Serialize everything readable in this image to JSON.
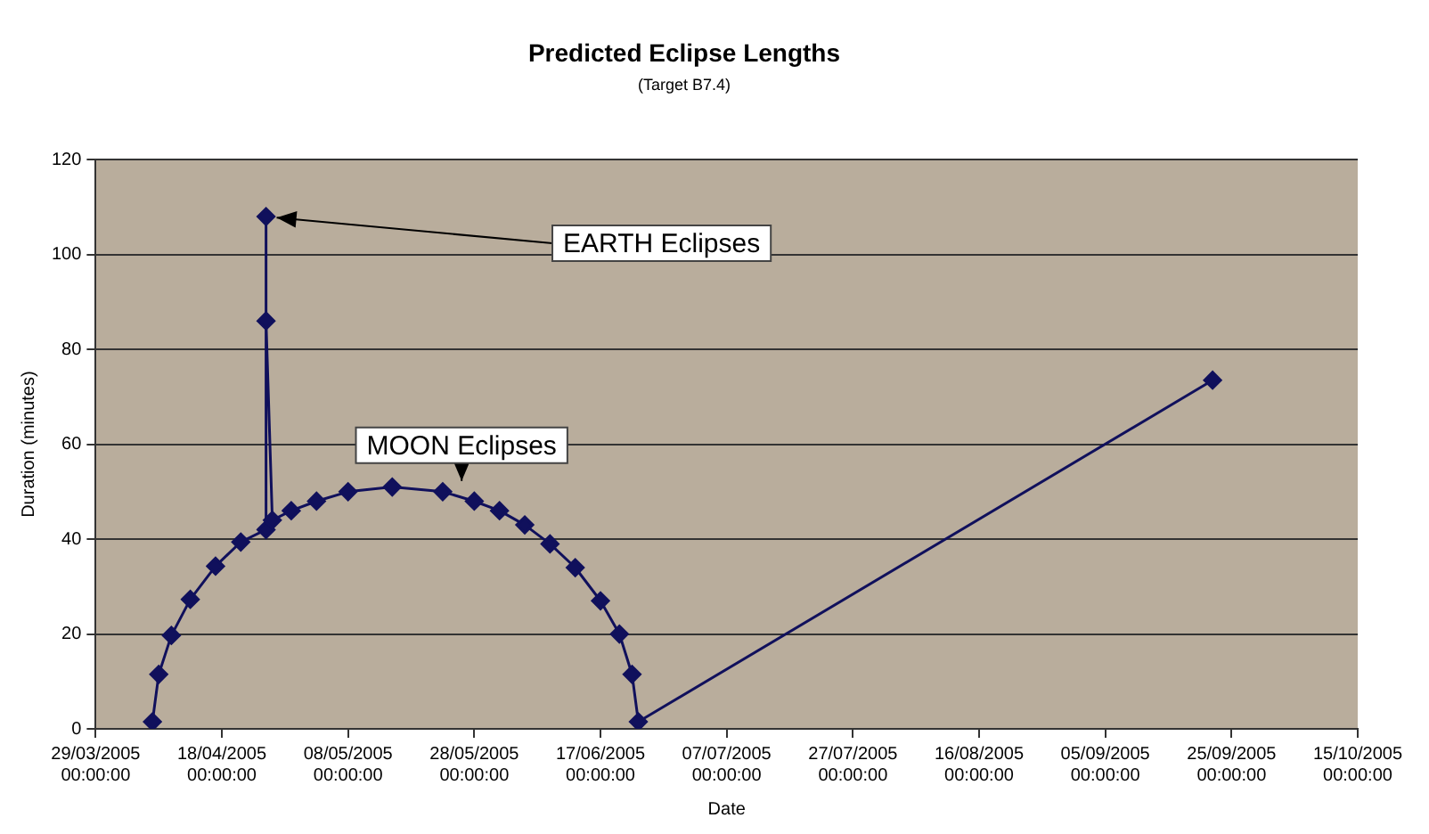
{
  "chart_data": {
    "type": "line",
    "title": "Predicted Eclipse Lengths",
    "subtitle": "(Target B7.4)",
    "xlabel": "Date",
    "ylabel": "Duration (minutes)",
    "x": [
      "2005-04-07",
      "2005-04-08",
      "2005-04-10",
      "2005-04-13",
      "2005-04-17",
      "2005-04-21",
      "2005-04-25",
      "2005-04-25",
      "2005-04-25",
      "2005-04-26",
      "2005-04-29",
      "2005-05-03",
      "2005-05-08",
      "2005-05-15",
      "2005-05-23",
      "2005-05-28",
      "2005-06-01",
      "2005-06-05",
      "2005-06-09",
      "2005-06-13",
      "2005-06-17",
      "2005-06-20",
      "2005-06-22",
      "2005-06-23",
      "2005-09-22"
    ],
    "series": [
      {
        "color": "#10105c",
        "values": [
          1.5,
          11.5,
          19.7,
          27.3,
          34.3,
          39.4,
          42,
          108,
          86,
          44,
          46,
          48,
          50,
          51,
          50,
          48,
          46,
          43,
          39,
          34,
          27,
          20,
          11.5,
          1.5,
          73.5
        ]
      }
    ],
    "xlim": [
      "2005-03-29",
      "2005-10-15"
    ],
    "xticks": [
      {
        "value": "2005-03-29",
        "label": "29/03/2005 00:00:00"
      },
      {
        "value": "2005-04-18",
        "label": "18/04/2005 00:00:00"
      },
      {
        "value": "2005-05-08",
        "label": "08/05/2005 00:00:00"
      },
      {
        "value": "2005-05-28",
        "label": "28/05/2005 00:00:00"
      },
      {
        "value": "2005-06-17",
        "label": "17/06/2005 00:00:00"
      },
      {
        "value": "2005-07-07",
        "label": "07/07/2005 00:00:00"
      },
      {
        "value": "2005-07-27",
        "label": "27/07/2005 00:00:00"
      },
      {
        "value": "2005-08-16",
        "label": "16/08/2005 00:00:00"
      },
      {
        "value": "2005-09-05",
        "label": "05/09/2005 00:00:00"
      },
      {
        "value": "2005-09-25",
        "label": "25/09/2005 00:00:00"
      },
      {
        "value": "2005-10-15",
        "label": "15/10/2005 00:00:00"
      }
    ],
    "ylim": [
      0,
      120
    ],
    "yticks": [
      0,
      20,
      40,
      60,
      80,
      100,
      120
    ],
    "grid": "y",
    "legend": false,
    "marker": "diamond",
    "line_style": "solid",
    "annotations": [
      {
        "text": "EARTH Eclipses",
        "x": "2005-04-25",
        "y": 108
      },
      {
        "text": "MOON Eclipses",
        "x": "2005-05-26",
        "y": 50
      }
    ]
  }
}
